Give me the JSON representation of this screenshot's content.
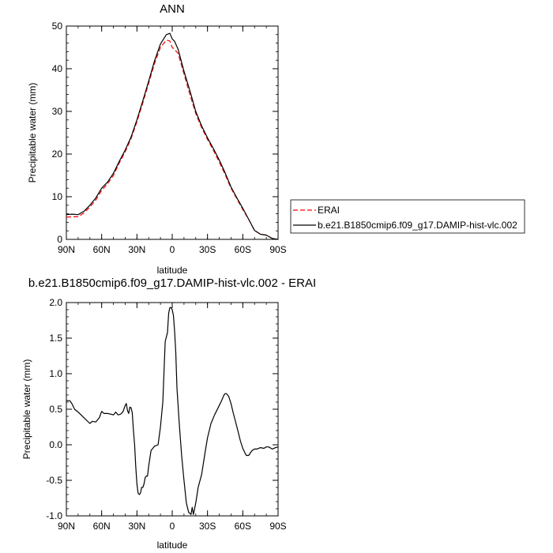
{
  "chart_data": [
    {
      "type": "line",
      "title": "ANN",
      "xlabel": "latitude",
      "ylabel": "Precipitable water (mm)",
      "xlim": [
        90,
        -90
      ],
      "ylim": [
        0,
        50
      ],
      "xticks": [
        90,
        60,
        30,
        0,
        -30,
        -60,
        -90
      ],
      "xtick_labels": [
        "90N",
        "60N",
        "30N",
        "0",
        "30S",
        "60S",
        "90S"
      ],
      "yticks": [
        0,
        10,
        20,
        30,
        40,
        50
      ],
      "ytick_labels": [
        "0",
        "10",
        "20",
        "30",
        "40",
        "50"
      ],
      "legend_position": "right",
      "series": [
        {
          "name": "ERAI",
          "color": "#ff0000",
          "dash": true,
          "x": [
            90,
            85,
            80,
            75,
            70,
            65,
            60,
            55,
            50,
            45,
            40,
            35,
            30,
            25,
            20,
            15,
            10,
            5,
            2,
            0,
            -2,
            -5,
            -10,
            -15,
            -20,
            -25,
            -30,
            -35,
            -40,
            -45,
            -50,
            -55,
            -60,
            -65,
            -70,
            -75,
            -80,
            -85,
            -90
          ],
          "values": [
            5.2,
            5.3,
            5.3,
            6.2,
            7.6,
            9.2,
            11.5,
            13.0,
            15.0,
            17.9,
            20.5,
            23.6,
            27.6,
            32.0,
            36.6,
            41.3,
            45.0,
            46.7,
            46.5,
            45.0,
            44.5,
            43.6,
            38.8,
            34.0,
            29.5,
            26.2,
            23.4,
            20.9,
            18.1,
            15.2,
            12.0,
            9.5,
            7.0,
            4.7,
            2.1,
            1.2,
            1.0,
            0.2,
            0.0
          ]
        },
        {
          "name": "b.e21.B1850cmip6.f09_g17.DAMIP-hist-vlc.002",
          "color": "#000000",
          "dash": false,
          "x": [
            90,
            85,
            80,
            75,
            70,
            65,
            60,
            55,
            50,
            45,
            40,
            35,
            30,
            25,
            20,
            15,
            10,
            5,
            2,
            0,
            -2,
            -5,
            -10,
            -15,
            -20,
            -25,
            -30,
            -35,
            -40,
            -45,
            -50,
            -55,
            -60,
            -65,
            -70,
            -75,
            -80,
            -85,
            -90
          ],
          "values": [
            5.8,
            5.9,
            5.8,
            6.6,
            8.0,
            9.7,
            12.0,
            13.4,
            15.5,
            18.3,
            20.9,
            24.0,
            28.0,
            32.5,
            37.1,
            41.9,
            45.8,
            48.0,
            48.3,
            47.0,
            46.4,
            44.6,
            39.4,
            34.9,
            30.0,
            26.6,
            23.8,
            21.3,
            18.6,
            15.6,
            12.3,
            9.7,
            7.3,
            4.7,
            2.1,
            1.2,
            1.0,
            0.2,
            0.0
          ]
        }
      ]
    },
    {
      "type": "line",
      "title": "b.e21.B1850cmip6.f09_g17.DAMIP-hist-vlc.002 - ERAI",
      "xlabel": "latitude",
      "ylabel": "Precipitable water (mm)",
      "xlim": [
        90,
        -90
      ],
      "ylim": [
        -1.0,
        2.0
      ],
      "xticks": [
        90,
        60,
        30,
        0,
        -30,
        -60,
        -90
      ],
      "xtick_labels": [
        "90N",
        "60N",
        "30N",
        "0",
        "30S",
        "60S",
        "90S"
      ],
      "yticks": [
        -1.0,
        -0.5,
        0.0,
        0.5,
        1.0,
        1.5,
        2.0
      ],
      "ytick_labels": [
        "-1.0",
        "-0.5",
        "0.0",
        "0.5",
        "1.0",
        "1.5",
        "2.0"
      ],
      "series": [
        {
          "color": "#000000",
          "x": [
            90,
            87,
            85,
            83,
            80,
            75,
            70,
            68,
            65,
            62,
            60,
            58,
            55,
            52,
            50,
            48,
            46,
            44,
            42,
            40,
            39,
            38,
            37,
            36,
            35,
            34,
            33,
            32,
            31,
            30,
            29,
            28,
            27,
            26,
            25,
            24,
            23,
            22,
            21,
            20,
            18,
            15,
            12,
            10,
            8,
            6,
            4,
            3,
            2,
            1,
            0,
            -1,
            -2,
            -3,
            -4,
            -6,
            -8,
            -10,
            -12,
            -14,
            -16,
            -17,
            -18,
            -20,
            -22,
            -25,
            -28,
            -30,
            -33,
            -36,
            -39,
            -42,
            -44,
            -45,
            -46,
            -48,
            -50,
            -52,
            -55,
            -58,
            -60,
            -62,
            -63,
            -65,
            -67,
            -68,
            -70,
            -72,
            -75,
            -78,
            -80,
            -82,
            -85,
            -88,
            -90
          ],
          "values": [
            0.62,
            0.62,
            0.57,
            0.5,
            0.46,
            0.38,
            0.3,
            0.33,
            0.32,
            0.38,
            0.47,
            0.44,
            0.44,
            0.43,
            0.42,
            0.46,
            0.42,
            0.43,
            0.46,
            0.55,
            0.58,
            0.48,
            0.44,
            0.53,
            0.52,
            0.45,
            0.2,
            0.0,
            -0.3,
            -0.55,
            -0.68,
            -0.7,
            -0.68,
            -0.6,
            -0.6,
            -0.55,
            -0.46,
            -0.44,
            -0.44,
            -0.3,
            -0.08,
            -0.02,
            0.0,
            0.25,
            0.6,
            1.45,
            1.58,
            1.85,
            1.93,
            1.93,
            1.9,
            1.82,
            1.6,
            1.3,
            0.8,
            0.3,
            -0.15,
            -0.5,
            -0.82,
            -0.95,
            -0.98,
            -0.88,
            -0.98,
            -0.82,
            -0.6,
            -0.42,
            -0.1,
            0.1,
            0.3,
            0.42,
            0.52,
            0.62,
            0.7,
            0.72,
            0.72,
            0.68,
            0.58,
            0.44,
            0.25,
            0.05,
            -0.05,
            -0.12,
            -0.15,
            -0.15,
            -0.1,
            -0.08,
            -0.06,
            -0.06,
            -0.04,
            -0.05,
            -0.03,
            -0.03,
            -0.06,
            -0.04,
            -0.03
          ]
        }
      ]
    }
  ]
}
